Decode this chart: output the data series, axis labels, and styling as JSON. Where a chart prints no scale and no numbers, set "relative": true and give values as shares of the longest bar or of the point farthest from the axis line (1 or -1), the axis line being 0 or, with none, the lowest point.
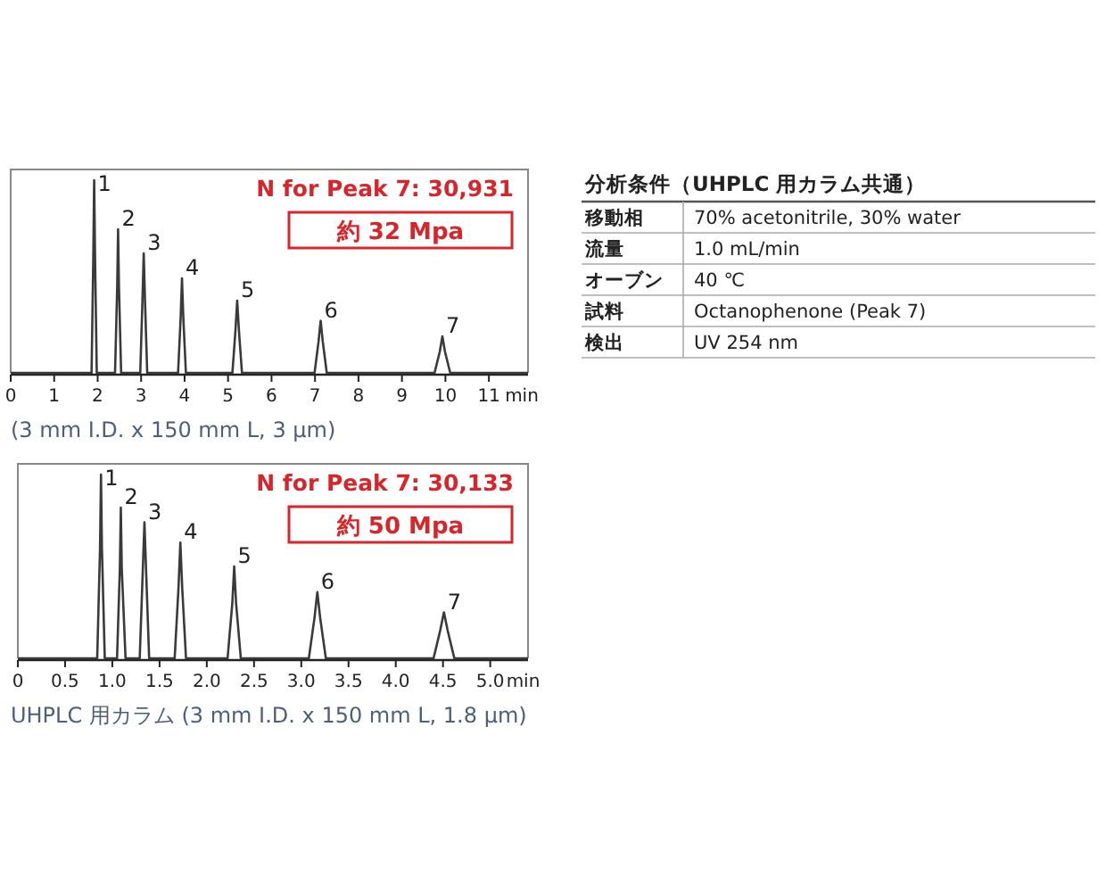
{
  "chart_data": [
    {
      "type": "line",
      "relative": true,
      "xlim": [
        0,
        11.9
      ],
      "xticks": [
        0,
        1,
        2,
        3,
        4,
        5,
        6,
        7,
        8,
        9,
        10,
        11
      ],
      "xlabel": "min",
      "series": [
        {
          "color": "#3a3a3a",
          "x": [
            0,
            1.86,
            1.9,
            1.92,
            1.94,
            1.98,
            2.4,
            2.45,
            2.47,
            2.49,
            2.54,
            2.98,
            3.03,
            3.06,
            3.09,
            3.14,
            3.85,
            3.91,
            3.94,
            3.97,
            4.03,
            5.1,
            5.17,
            5.21,
            5.25,
            5.32,
            6.99,
            7.08,
            7.13,
            7.18,
            7.27,
            9.75,
            9.87,
            9.93,
            9.99,
            10.11,
            11.9
          ],
          "values": [
            0,
            0,
            0.6,
            1,
            0.6,
            0,
            0,
            0.45,
            0.745,
            0.45,
            0,
            0,
            0.37,
            0.62,
            0.37,
            0,
            0,
            0.29,
            0.49,
            0.29,
            0,
            0,
            0.22,
            0.375,
            0.22,
            0,
            0,
            0.16,
            0.27,
            0.16,
            0,
            0,
            0.11,
            0.19,
            0.11,
            0,
            0
          ]
        }
      ],
      "annotations": [
        "N for Peak 7: 30,931",
        "約 32 Mpa",
        "(3 mm I.D. x 150 mm L, 3 μm)",
        {
          "text": "1",
          "x": 1.92,
          "y": 1
        },
        {
          "text": "2",
          "x": 2.47,
          "y": 0.745
        },
        {
          "text": "3",
          "x": 3.06,
          "y": 0.62
        },
        {
          "text": "4",
          "x": 3.94,
          "y": 0.49
        },
        {
          "text": "5",
          "x": 5.21,
          "y": 0.375
        },
        {
          "text": "6",
          "x": 7.13,
          "y": 0.27
        },
        {
          "text": "7",
          "x": 9.93,
          "y": 0.19
        }
      ]
    },
    {
      "type": "line",
      "relative": true,
      "xlim": [
        0,
        5.4
      ],
      "xticks": [
        0,
        0.5,
        {
          "value": 1,
          "label": "1.0"
        },
        1.5,
        {
          "value": 2,
          "label": "2.0"
        },
        2.5,
        {
          "value": 3,
          "label": "3.0"
        },
        3.5,
        {
          "value": 4,
          "label": "4.0"
        },
        4.5,
        {
          "value": 5,
          "label": "5.0"
        }
      ],
      "xlabel": "min",
      "series": [
        {
          "color": "#3a3a3a",
          "x": [
            0,
            0.84,
            0.87,
            0.88,
            0.89,
            0.92,
            1.05,
            1.08,
            1.09,
            1.1,
            1.14,
            1.29,
            1.32,
            1.34,
            1.36,
            1.39,
            1.66,
            1.7,
            1.72,
            1.74,
            1.78,
            2.22,
            2.27,
            2.29,
            2.31,
            2.36,
            3.08,
            3.14,
            3.17,
            3.2,
            3.26,
            4.4,
            4.47,
            4.51,
            4.55,
            4.62,
            5.4
          ],
          "values": [
            0,
            0,
            0.6,
            1,
            0.6,
            0,
            0,
            0.49,
            0.82,
            0.49,
            0,
            0,
            0.44,
            0.74,
            0.44,
            0,
            0,
            0.38,
            0.63,
            0.38,
            0,
            0,
            0.3,
            0.5,
            0.3,
            0,
            0,
            0.22,
            0.36,
            0.22,
            0,
            0,
            0.15,
            0.25,
            0.15,
            0,
            0
          ]
        }
      ],
      "annotations": [
        "N for Peak 7: 30,133",
        "約 50 Mpa",
        "UHPLC 用カラム (3 mm I.D. x 150 mm L, 1.8 μm)",
        {
          "text": "1",
          "x": 0.88,
          "y": 1
        },
        {
          "text": "2",
          "x": 1.09,
          "y": 0.82
        },
        {
          "text": "3",
          "x": 1.34,
          "y": 0.74
        },
        {
          "text": "4",
          "x": 1.72,
          "y": 0.63
        },
        {
          "text": "5",
          "x": 2.29,
          "y": 0.5
        },
        {
          "text": "6",
          "x": 3.17,
          "y": 0.36
        },
        {
          "text": "7",
          "x": 4.51,
          "y": 0.25
        }
      ]
    },
    {
      "type": "other",
      "title": "分析条件（UHPLC 用カラム共通）",
      "annotations": [
        "移動相",
        "70% acetonitrile, 30% water",
        "流量",
        "1.0 mL/min",
        "オーブン",
        "40 ℃",
        "試料",
        "Octanophenone (Peak 7)",
        "検出",
        "UV 254 nm"
      ]
    }
  ]
}
